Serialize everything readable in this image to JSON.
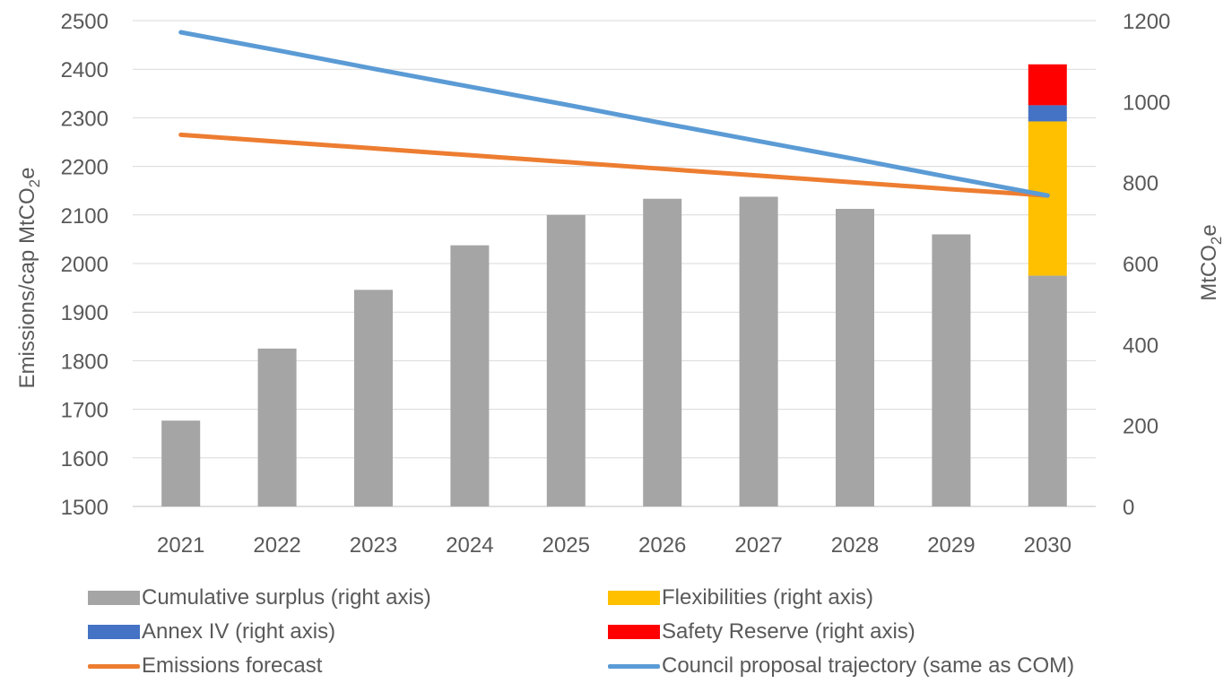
{
  "chart_data": {
    "type": "bar",
    "categories": [
      "2021",
      "2022",
      "2023",
      "2024",
      "2025",
      "2026",
      "2027",
      "2028",
      "2029",
      "2030"
    ],
    "left_axis": {
      "label": "Emissions/cap MtCO₂e",
      "label_main": "Emissions/cap MtCO",
      "label_sub": "2",
      "label_end": "e",
      "ylim": [
        1500,
        2500
      ],
      "ticks": [
        "1500",
        "1600",
        "1700",
        "1800",
        "1900",
        "2000",
        "2100",
        "2200",
        "2300",
        "2400",
        "2500"
      ]
    },
    "right_axis": {
      "label": "MtCO₂e",
      "label_main": "MtCO",
      "label_sub": "2",
      "label_end": "e",
      "ylim": [
        0,
        1200
      ],
      "ticks": [
        "0",
        "200",
        "400",
        "600",
        "800",
        "1000",
        "1200"
      ]
    },
    "stacked_bars": [
      {
        "name": "Cumulative surplus (right axis)",
        "color": "#a5a5a5",
        "axis": "right",
        "values": [
          212,
          390,
          535,
          645,
          720,
          760,
          765,
          735,
          672,
          570
        ]
      },
      {
        "name": "Flexibilities (right axis)",
        "color": "#ffc000",
        "axis": "right",
        "values": [
          0,
          0,
          0,
          0,
          0,
          0,
          0,
          0,
          0,
          381
        ]
      },
      {
        "name": "Annex IV (right axis)",
        "color": "#4472c4",
        "axis": "right",
        "values": [
          0,
          0,
          0,
          0,
          0,
          0,
          0,
          0,
          0,
          40
        ]
      },
      {
        "name": "Safety Reserve (right axis)",
        "color": "#ff0000",
        "axis": "right",
        "values": [
          0,
          0,
          0,
          0,
          0,
          0,
          0,
          0,
          0,
          101
        ]
      }
    ],
    "lines": [
      {
        "name": "Emissions forecast",
        "color": "#ed7d31",
        "axis": "left",
        "values": [
          2265,
          2251,
          2237,
          2223,
          2209,
          2195,
          2181,
          2167,
          2153,
          2140
        ]
      },
      {
        "name": "Council proposal trajectory (same as COM)",
        "color": "#5b9bd5",
        "axis": "left",
        "values": [
          2476,
          2439,
          2401,
          2364,
          2327,
          2289,
          2252,
          2215,
          2177,
          2140
        ]
      }
    ],
    "grid": true,
    "legend_position": "bottom"
  },
  "legend": [
    {
      "label": "Cumulative surplus (right axis)",
      "color": "#a5a5a5",
      "kind": "bar"
    },
    {
      "label": "Flexibilities (right axis)",
      "color": "#ffc000",
      "kind": "bar"
    },
    {
      "label": "Annex IV (right axis)",
      "color": "#4472c4",
      "kind": "bar"
    },
    {
      "label": "Safety Reserve (right axis)",
      "color": "#ff0000",
      "kind": "bar"
    },
    {
      "label": "Emissions forecast",
      "color": "#ed7d31",
      "kind": "line"
    },
    {
      "label": "Council proposal trajectory (same as COM)",
      "color": "#5b9bd5",
      "kind": "line"
    }
  ]
}
